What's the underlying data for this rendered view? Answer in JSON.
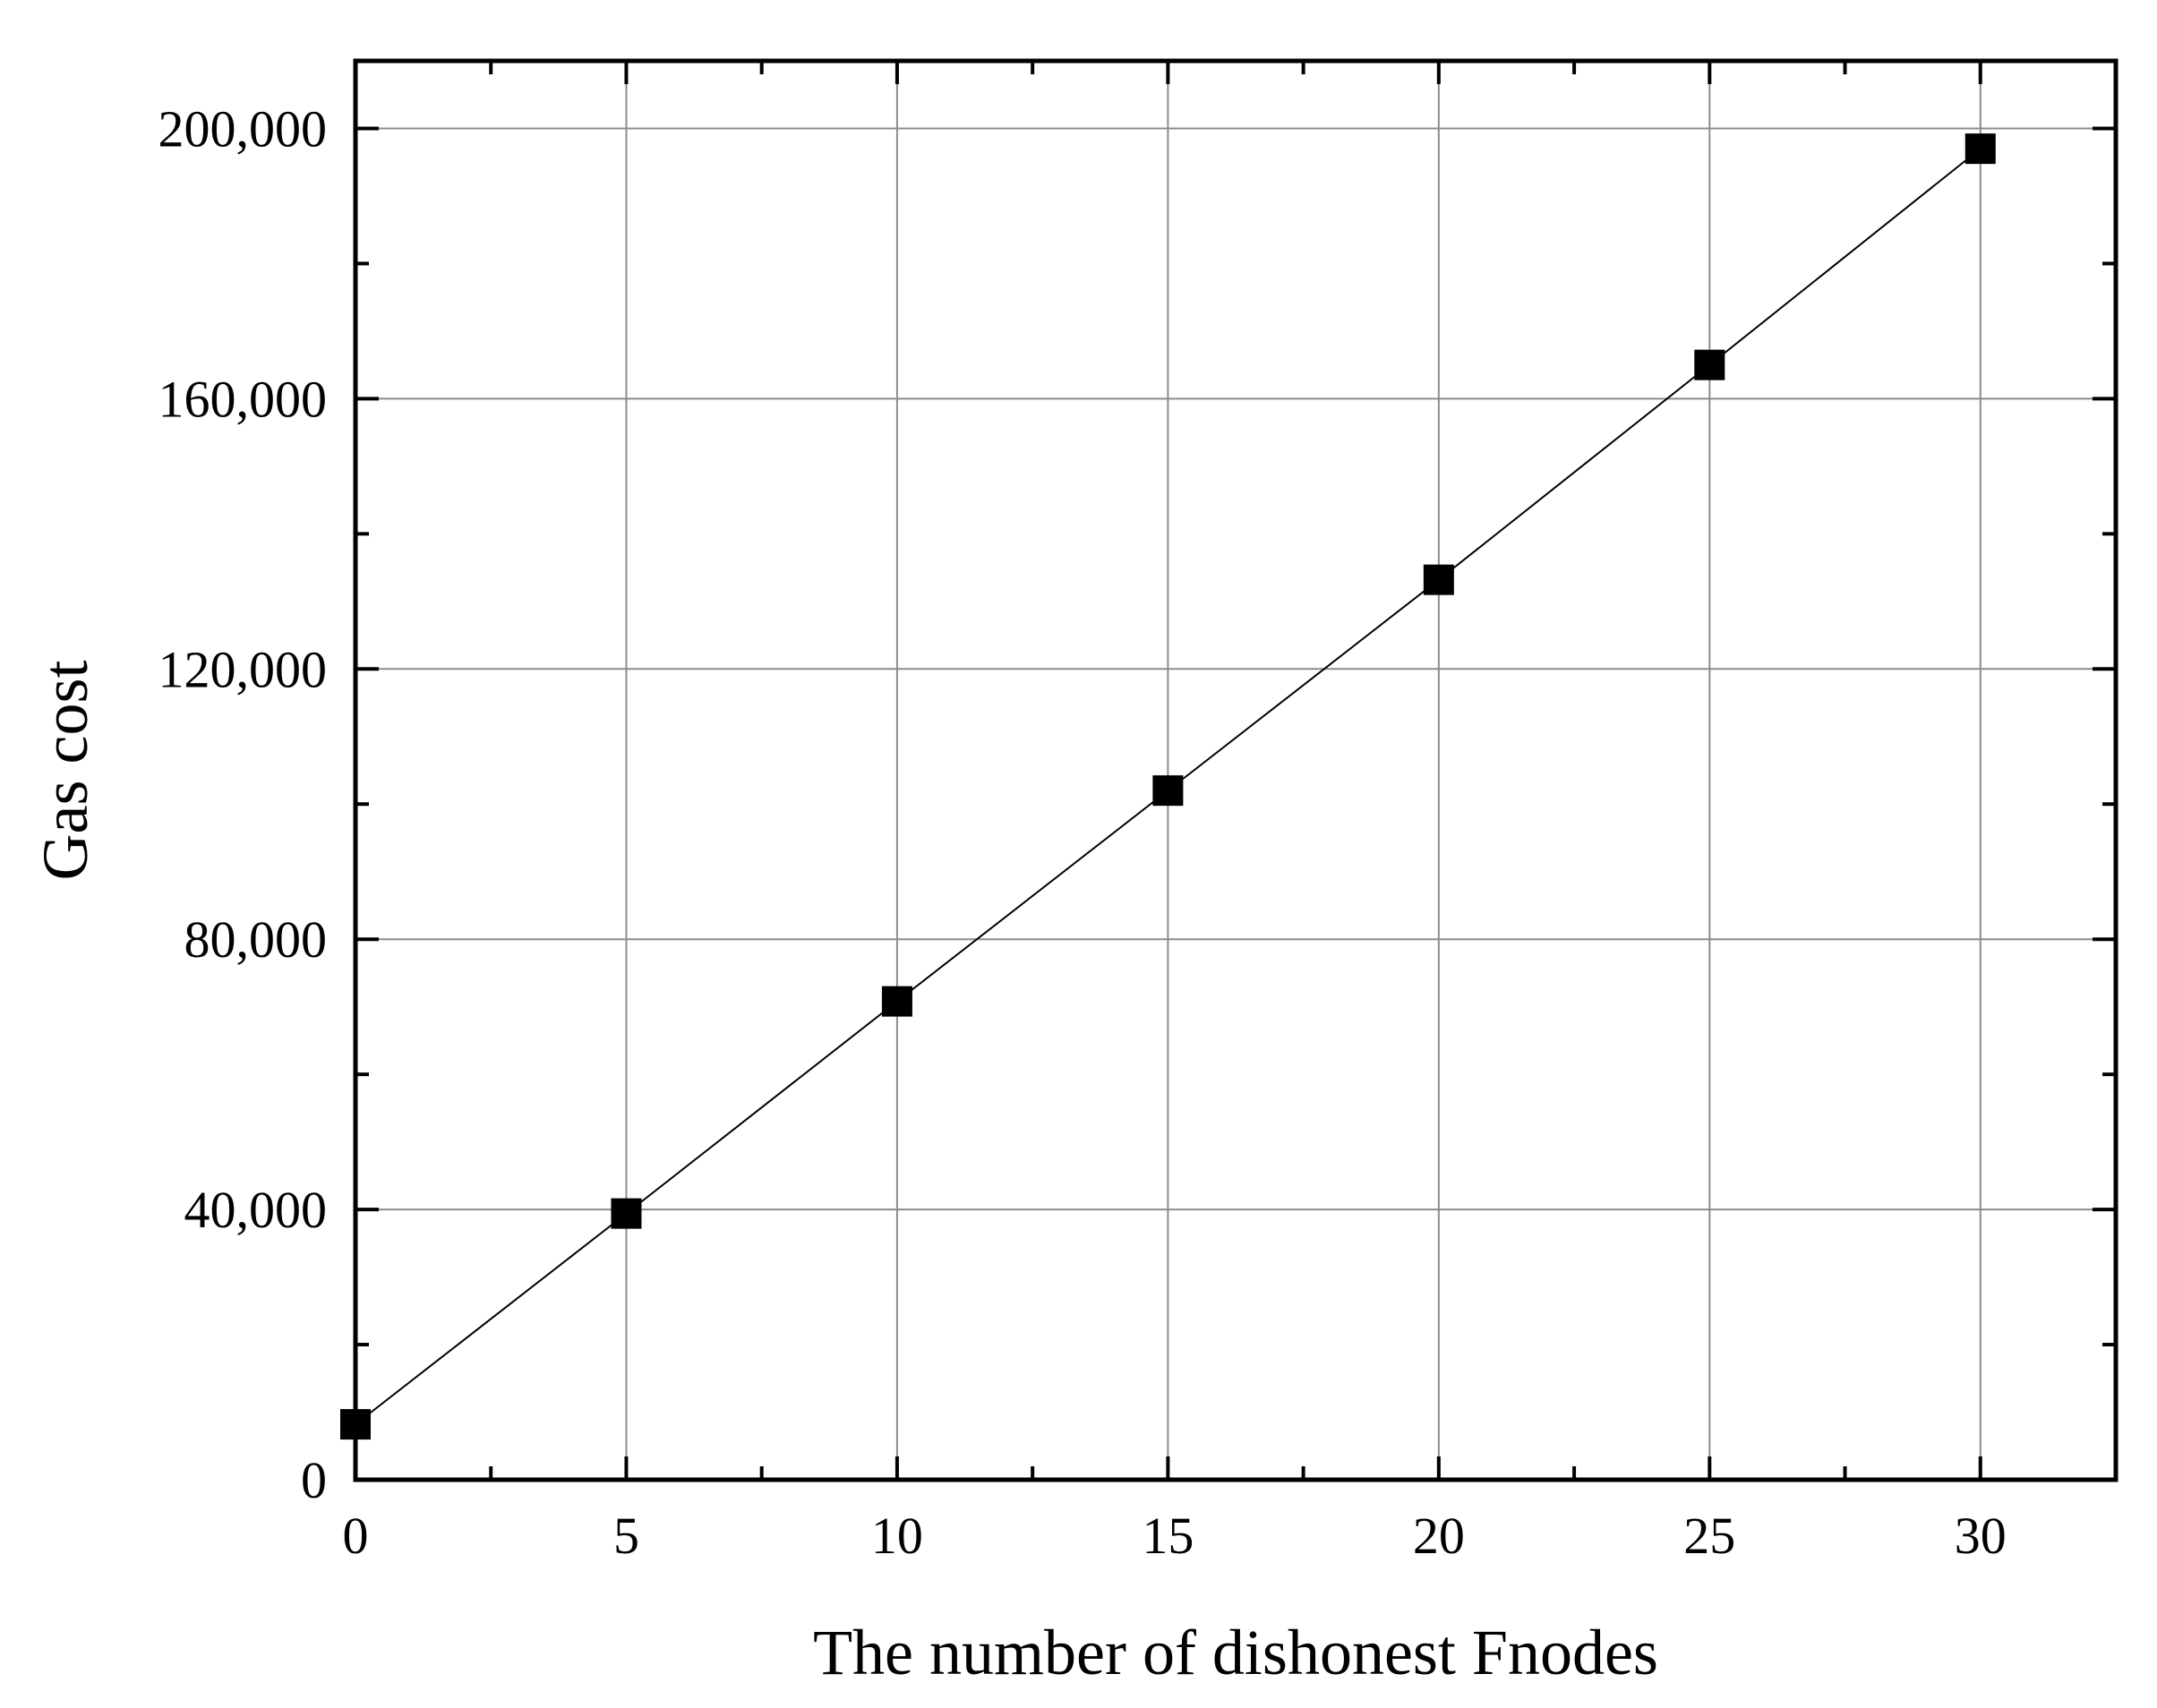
{
  "chart_data": {
    "type": "line",
    "xlabel": "The number of dishonest Fnodes",
    "ylabel": "Gas cost",
    "xlim": [
      0,
      32.5
    ],
    "ylim": [
      0,
      210000
    ],
    "x_ticks": [
      0,
      5,
      10,
      15,
      20,
      25,
      30
    ],
    "x_tick_labels": [
      "0",
      "5",
      "10",
      "15",
      "20",
      "25",
      "30"
    ],
    "x_minor_ticks": [
      2.5,
      7.5,
      12.5,
      17.5,
      22.5,
      27.5
    ],
    "y_ticks": [
      0,
      40000,
      80000,
      120000,
      160000,
      200000
    ],
    "y_tick_labels": [
      "0",
      "40,000",
      "80,000",
      "120,000",
      "160,000",
      "200,000"
    ],
    "y_minor_ticks": [
      20000,
      60000,
      100000,
      140000,
      180000
    ],
    "grid": true,
    "marker": "square",
    "series": [
      {
        "x": [
          0,
          5,
          10,
          15,
          20,
          25,
          30
        ],
        "y": [
          8200,
          39400,
          70800,
          102000,
          133200,
          165000,
          197000
        ]
      }
    ]
  }
}
